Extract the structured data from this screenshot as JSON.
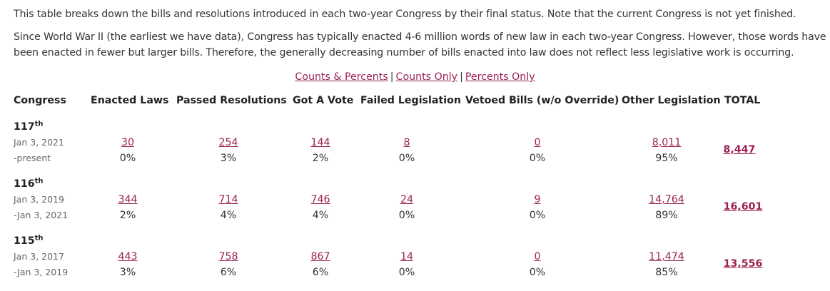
{
  "intro": {
    "p1": "This table breaks down the bills and resolutions introduced in each two-year Congress by their final status. Note that the current Congress is not yet finished.",
    "p2": "Since World War II (the earliest we have data), Congress has typically enacted 4-6 million words of new law in each two-year Congress. However, those words have been enacted in fewer but larger bills. Therefore, the generally decreasing number of bills enacted into law does not reflect less legislative work is occurring."
  },
  "views": {
    "counts_percents": "Counts & Percents",
    "sep": "|",
    "counts_only": "Counts Only",
    "percents_only": "Percents Only"
  },
  "columns": [
    "Congress",
    "Enacted Laws",
    "Passed Resolutions",
    "Got A Vote",
    "Failed Legislation",
    "Vetoed Bills (w/o Override)",
    "Other Legislation",
    "TOTAL"
  ],
  "rows": [
    {
      "num": "117",
      "suffix": "th",
      "date1": "Jan 3, 2021",
      "date2": "-present",
      "cells": [
        {
          "count": "30",
          "pct": "0%"
        },
        {
          "count": "254",
          "pct": "3%"
        },
        {
          "count": "144",
          "pct": "2%"
        },
        {
          "count": "8",
          "pct": "0%"
        },
        {
          "count": "0",
          "pct": "0%"
        },
        {
          "count": "8,011",
          "pct": "95%"
        }
      ],
      "total": "8,447"
    },
    {
      "num": "116",
      "suffix": "th",
      "date1": "Jan 3, 2019",
      "date2": "-Jan 3, 2021",
      "cells": [
        {
          "count": "344",
          "pct": "2%"
        },
        {
          "count": "714",
          "pct": "4%"
        },
        {
          "count": "746",
          "pct": "4%"
        },
        {
          "count": "24",
          "pct": "0%"
        },
        {
          "count": "9",
          "pct": "0%"
        },
        {
          "count": "14,764",
          "pct": "89%"
        }
      ],
      "total": "16,601"
    },
    {
      "num": "115",
      "suffix": "th",
      "date1": "Jan 3, 2017",
      "date2": "-Jan 3, 2019",
      "cells": [
        {
          "count": "443",
          "pct": "3%"
        },
        {
          "count": "758",
          "pct": "6%"
        },
        {
          "count": "867",
          "pct": "6%"
        },
        {
          "count": "14",
          "pct": "0%"
        },
        {
          "count": "0",
          "pct": "0%"
        },
        {
          "count": "11,474",
          "pct": "85%"
        }
      ],
      "total": "13,556"
    }
  ],
  "colors": {
    "link": "#9c2155",
    "text": "#333333",
    "muted": "#666666"
  }
}
